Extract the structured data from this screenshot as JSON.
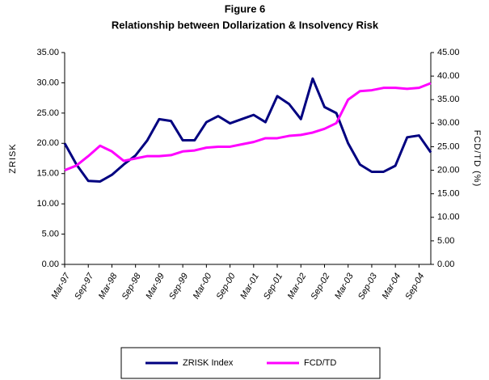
{
  "chart_data": {
    "type": "line",
    "title": "Figure 6",
    "subtitle": "Relationship between Dollarization & Insolvency Risk",
    "ylabel": "ZRISK",
    "y2label": "FCD/TD (%)",
    "categories": [
      "Mar-97",
      null,
      "Sep-97",
      null,
      "Mar-98",
      null,
      "Sep-98",
      null,
      "Mar-99",
      null,
      "Sep-99",
      null,
      "Mar-00",
      null,
      "Sep-00",
      null,
      "Mar-01",
      null,
      "Sep-01",
      null,
      "Mar-02",
      null,
      "Sep-02",
      null,
      "Mar-03",
      null,
      "Sep-03",
      null,
      "Mar-04",
      null,
      "Sep-04",
      null
    ],
    "series": [
      {
        "name": "ZRISK Index",
        "color": "#000080",
        "axis": "y",
        "values": [
          20,
          16.5,
          13.8,
          13.7,
          14.8,
          16.5,
          18,
          20.5,
          24,
          23.7,
          20.5,
          20.5,
          23.5,
          24.5,
          23.3,
          24,
          24.7,
          23.5,
          27.8,
          26.5,
          24,
          30.7,
          26,
          25,
          20,
          16.5,
          15.3,
          15.3,
          16.3,
          21,
          21.3,
          18.5
        ]
      },
      {
        "name": "FCD/TD",
        "color": "#ff00ff",
        "axis": "y2",
        "values": [
          20,
          21,
          23,
          25.2,
          24,
          22,
          22.5,
          23,
          23,
          23.2,
          24,
          24.2,
          24.8,
          25,
          25,
          25.5,
          26,
          26.8,
          26.8,
          27.3,
          27.5,
          28,
          28.8,
          30,
          35,
          36.8,
          37,
          37.5,
          37.5,
          37.3,
          37.5,
          38.5
        ]
      }
    ],
    "ylim": [
      0,
      35
    ],
    "yticks": [
      {
        "value": 0,
        "label": "0.00"
      },
      {
        "value": 5,
        "label": "5.00"
      },
      {
        "value": 10,
        "label": "10.00"
      },
      {
        "value": 15,
        "label": "15.00"
      },
      {
        "value": 20,
        "label": "20.00"
      },
      {
        "value": 25,
        "label": "25.00"
      },
      {
        "value": 30,
        "label": "30.00"
      },
      {
        "value": 35,
        "label": "35.00"
      }
    ],
    "y2lim": [
      0,
      45
    ],
    "y2ticks": [
      {
        "value": 0,
        "label": "0.00"
      },
      {
        "value": 5,
        "label": "5.00"
      },
      {
        "value": 10,
        "label": "10.00"
      },
      {
        "value": 15,
        "label": "15.00"
      },
      {
        "value": 20,
        "label": "20.00"
      },
      {
        "value": 25,
        "label": "25.00"
      },
      {
        "value": 30,
        "label": "30.00"
      },
      {
        "value": 35,
        "label": "35.00"
      },
      {
        "value": 40,
        "label": "40.00"
      },
      {
        "value": 45,
        "label": "45.00"
      }
    ],
    "legend": "bottom"
  }
}
